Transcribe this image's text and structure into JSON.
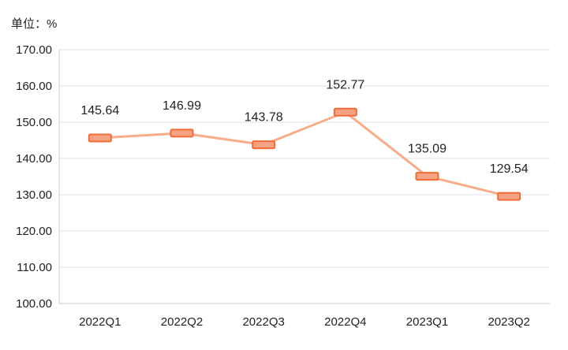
{
  "unit_label": "单位：%",
  "chart_data": {
    "type": "line",
    "categories": [
      "2022Q1",
      "2022Q2",
      "2022Q3",
      "2022Q4",
      "2023Q1",
      "2023Q2"
    ],
    "series": [
      {
        "values": [
          145.64,
          146.99,
          143.78,
          152.77,
          135.09,
          129.54
        ],
        "labels": [
          "145.64",
          "146.99",
          "143.78",
          "152.77",
          "135.09",
          "129.54"
        ]
      }
    ],
    "y_ticks": [
      "100.00",
      "110.00",
      "120.00",
      "130.00",
      "140.00",
      "150.00",
      "160.00",
      "170.00"
    ],
    "ylim": [
      100,
      170
    ],
    "grid": true,
    "colors": {
      "line": "#f8ad8a",
      "marker_fill": "#f5a383",
      "marker_stroke": "#ef6b37",
      "grid": "#e0e0e0",
      "axis": "#c8c8c8"
    }
  }
}
